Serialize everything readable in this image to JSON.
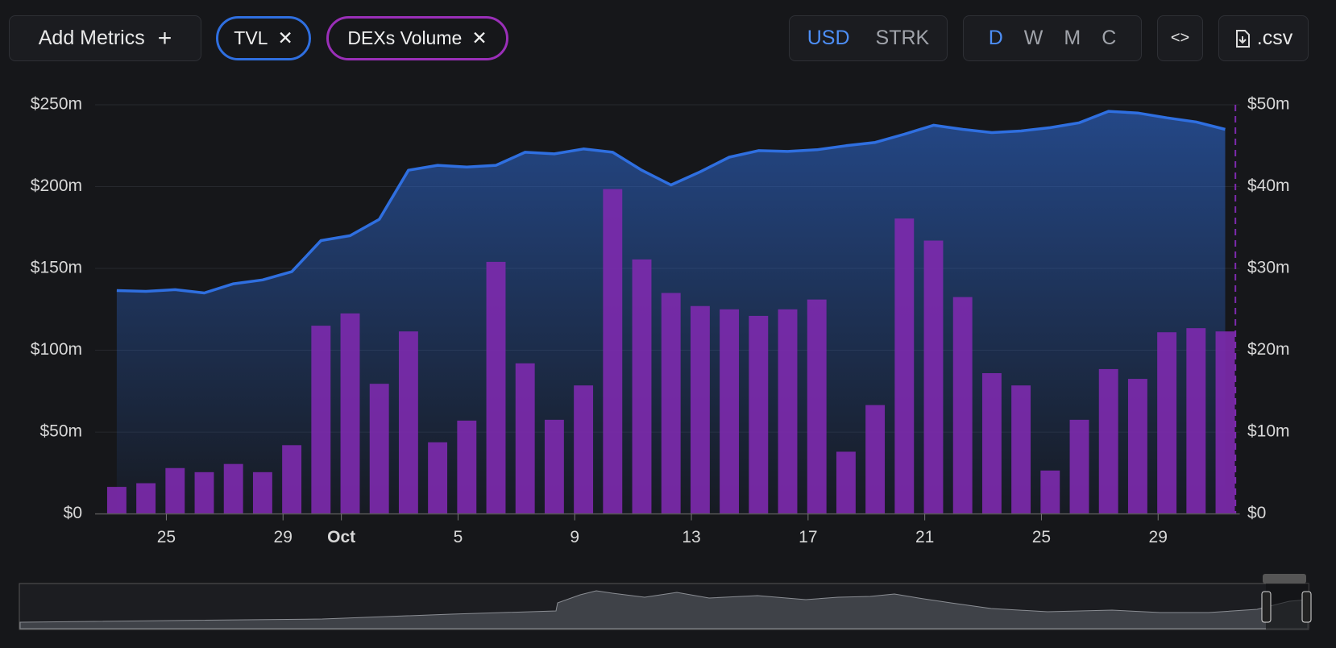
{
  "toolbar": {
    "add_metrics": "Add Metrics",
    "currency": [
      "USD",
      "STRK"
    ],
    "periods": [
      "D",
      "W",
      "M",
      "C"
    ],
    "csv": ".csv"
  },
  "chart_data": {
    "type": "bar-line",
    "categories": [
      null,
      null,
      "25",
      null,
      null,
      null,
      "29",
      null,
      "Oct",
      null,
      null,
      null,
      "5",
      null,
      null,
      null,
      "9",
      null,
      null,
      null,
      "13",
      null,
      null,
      null,
      "17",
      null,
      null,
      null,
      "21",
      null,
      null,
      null,
      "25",
      null,
      null,
      null,
      "29",
      null,
      null
    ],
    "series": [
      {
        "name": "TVL",
        "color": "#2f6fe0",
        "kind": "area",
        "values": [
          136.5,
          136,
          137,
          135,
          140.6,
          143,
          148,
          167,
          170,
          180,
          210,
          213,
          212,
          213,
          221,
          220,
          223,
          221,
          210,
          201,
          209,
          218,
          222,
          221.5,
          222.5,
          225,
          227,
          232,
          237.5,
          235,
          233,
          234,
          236,
          239,
          246,
          245,
          242,
          239.5,
          235
        ]
      },
      {
        "name": "DEXs Volume",
        "color": "#7d2aae",
        "kind": "bar",
        "axis": "y2",
        "values": [
          3.3,
          3.75,
          5.6,
          5.1,
          6.1,
          5.1,
          8.4,
          23,
          24.5,
          15.9,
          22.3,
          8.75,
          11.4,
          30.8,
          18.4,
          11.5,
          15.7,
          39.7,
          31.1,
          27,
          25.4,
          25,
          24.2,
          25,
          26.2,
          7.6,
          13.3,
          36.1,
          33.4,
          26.5,
          17.2,
          15.7,
          5.3,
          11.5,
          17.7,
          16.5,
          22.2,
          22.7,
          22.3
        ]
      }
    ],
    "ylim": [
      0,
      250
    ],
    "yticks": [
      {
        "value": 0,
        "label": "$0"
      },
      {
        "value": 50,
        "label": "$50m"
      },
      {
        "value": 100,
        "label": "$100m"
      },
      {
        "value": 150,
        "label": "$150m"
      },
      {
        "value": 200,
        "label": "$200m"
      },
      {
        "value": 250,
        "label": "$250m"
      }
    ],
    "y2lim": [
      0,
      50
    ],
    "y2ticks": [
      {
        "value": 0,
        "label": "$0"
      },
      {
        "value": 10,
        "label": "$10m"
      },
      {
        "value": 20,
        "label": "$20m"
      },
      {
        "value": 30,
        "label": "$30m"
      },
      {
        "value": 40,
        "label": "$40m"
      },
      {
        "value": 50,
        "label": "$50m"
      }
    ],
    "grid": true
  }
}
